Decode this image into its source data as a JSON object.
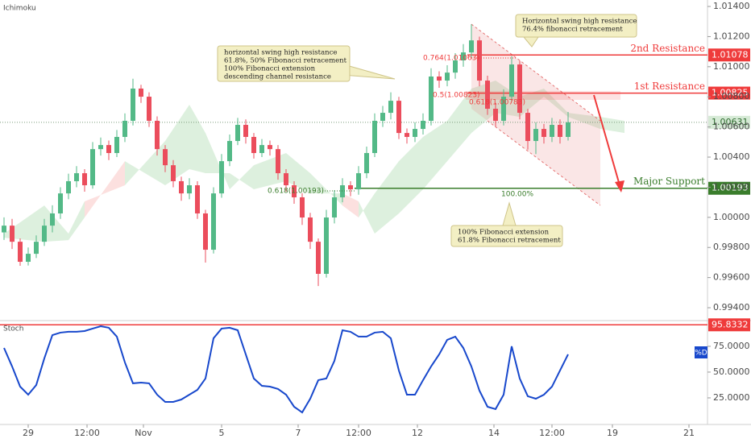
{
  "chart_data": {
    "type": "candlestick",
    "indicator": "Ichimoku",
    "up_color": "#53b987",
    "down_color": "#eb4d5c",
    "xlim": [
      -0.5,
      87.3
    ],
    "xticks": [
      {
        "value": 3,
        "label": "29"
      },
      {
        "value": 10.3,
        "label": "12:00"
      },
      {
        "value": 17.3,
        "label": "Nov"
      },
      {
        "value": 27,
        "label": "5"
      },
      {
        "value": 36.5,
        "label": "7"
      },
      {
        "value": 44,
        "label": "12:00"
      },
      {
        "value": 51.3,
        "label": "12"
      },
      {
        "value": 60.8,
        "label": "14"
      },
      {
        "value": 68,
        "label": "12:00"
      },
      {
        "value": 75.5,
        "label": "19"
      },
      {
        "value": 85,
        "label": "21"
      }
    ],
    "ylim": [
      0.9932,
      1.01443
    ],
    "yticks": [
      {
        "value": 1.014,
        "label": "1.01400"
      },
      {
        "value": 1.012,
        "label": "1.01200"
      },
      {
        "value": 1.01,
        "label": "1.01000"
      },
      {
        "value": 1.008,
        "label": "1.00800"
      },
      {
        "value": 1.006,
        "label": "1.00600"
      },
      {
        "value": 1.004,
        "label": "1.00400"
      },
      {
        "value": 1.002,
        "label": "1.00200"
      },
      {
        "value": 1.0,
        "label": "1.00000"
      },
      {
        "value": 0.998,
        "label": "0.99800"
      },
      {
        "value": 0.996,
        "label": "0.99600"
      },
      {
        "value": 0.994,
        "label": "0.99400"
      }
    ],
    "grid": false,
    "ohlc": [
      [
        0.999,
        1.0,
        0.9985,
        0.99945
      ],
      [
        0.99945,
        0.9999,
        0.9979,
        0.99838
      ],
      [
        0.99838,
        0.9986,
        0.99678,
        0.99705
      ],
      [
        0.99705,
        0.998,
        0.9968,
        0.99758
      ],
      [
        0.99758,
        0.9988,
        0.9973,
        0.99838
      ],
      [
        0.99838,
        0.9999,
        0.9981,
        0.99945
      ],
      [
        0.99945,
        1.0008,
        0.999,
        1.00026
      ],
      [
        1.00026,
        1.002,
        0.9999,
        1.00159
      ],
      [
        1.00159,
        1.0029,
        1.0012,
        1.0024
      ],
      [
        1.0024,
        1.0034,
        1.002,
        1.00293
      ],
      [
        1.00293,
        1.0032,
        1.0017,
        1.00213
      ],
      [
        1.00213,
        1.005,
        1.0019,
        1.00453
      ],
      [
        1.00453,
        1.0053,
        1.0041,
        1.0048
      ],
      [
        1.0048,
        1.0051,
        1.0038,
        1.00427
      ],
      [
        1.00427,
        1.0058,
        1.004,
        1.00534
      ],
      [
        1.00534,
        1.0069,
        1.005,
        1.00641
      ],
      [
        1.00641,
        1.0092,
        1.0061,
        1.00855
      ],
      [
        1.00855,
        1.0088,
        1.0076,
        1.00801
      ],
      [
        1.00801,
        1.0083,
        1.006,
        1.00641
      ],
      [
        1.00641,
        1.0067,
        1.0041,
        1.00453
      ],
      [
        1.00453,
        1.0048,
        1.003,
        1.00346
      ],
      [
        1.00346,
        1.0038,
        1.002,
        1.0024
      ],
      [
        1.0024,
        1.0027,
        1.0011,
        1.00159
      ],
      [
        1.00159,
        1.0026,
        1.0012,
        1.00213
      ],
      [
        1.00213,
        1.0024,
        0.9999,
        1.00026
      ],
      [
        1.00026,
        1.0005,
        0.997,
        0.99785
      ],
      [
        0.99785,
        1.002,
        0.9976,
        1.00159
      ],
      [
        1.00159,
        1.0042,
        1.0013,
        1.00373
      ],
      [
        1.00373,
        1.0055,
        1.0034,
        1.00507
      ],
      [
        1.00507,
        1.0066,
        1.0048,
        1.00614
      ],
      [
        1.00614,
        1.0065,
        1.0049,
        1.00534
      ],
      [
        1.00534,
        1.0056,
        1.0039,
        1.00427
      ],
      [
        1.00427,
        1.0052,
        1.004,
        1.0048
      ],
      [
        1.0048,
        1.0051,
        1.0041,
        1.00453
      ],
      [
        1.00453,
        1.0048,
        1.0025,
        1.00293
      ],
      [
        1.00293,
        1.0032,
        1.0017,
        1.00213
      ],
      [
        1.00213,
        1.0024,
        1.0009,
        1.00133
      ],
      [
        1.00133,
        1.0016,
        0.9995,
        0.99999
      ],
      [
        0.99999,
        1.0003,
        0.9979,
        0.99838
      ],
      [
        0.99838,
        0.9986,
        0.99544,
        0.99625
      ],
      [
        0.99625,
        1.0005,
        0.996,
        0.99999
      ],
      [
        0.99999,
        1.0018,
        0.9996,
        1.00133
      ],
      [
        1.00133,
        1.0026,
        1.001,
        1.00213
      ],
      [
        1.00213,
        1.0024,
        1.0014,
        1.00186
      ],
      [
        1.00186,
        1.0034,
        1.0015,
        1.00293
      ],
      [
        1.00293,
        1.0047,
        1.0026,
        1.00427
      ],
      [
        1.00427,
        1.0069,
        1.004,
        1.00641
      ],
      [
        1.00641,
        1.0074,
        1.006,
        1.00694
      ],
      [
        1.00694,
        1.0083,
        1.0065,
        1.00774
      ],
      [
        1.00774,
        1.008,
        1.0052,
        1.0056
      ],
      [
        1.0056,
        1.0059,
        1.0049,
        1.00534
      ],
      [
        1.00534,
        1.0063,
        1.005,
        1.00587
      ],
      [
        1.00587,
        1.0069,
        1.0055,
        1.00641
      ],
      [
        1.00641,
        1.0099,
        1.0061,
        1.00935
      ],
      [
        1.00935,
        1.0097,
        1.0086,
        1.00908
      ],
      [
        1.00908,
        1.0101,
        1.0087,
        1.00961
      ],
      [
        1.00961,
        1.0109,
        1.0092,
        1.01042
      ],
      [
        1.01042,
        1.0115,
        1.01,
        1.01095
      ],
      [
        1.01095,
        1.01282,
        1.0106,
        1.01175
      ],
      [
        1.01175,
        1.012,
        1.0087,
        1.00908
      ],
      [
        1.00908,
        1.0094,
        1.0068,
        1.00721
      ],
      [
        1.00721,
        1.0076,
        1.006,
        1.00641
      ],
      [
        1.00641,
        1.0085,
        1.0061,
        1.00801
      ],
      [
        1.00801,
        1.0107,
        1.0077,
        1.01015
      ],
      [
        1.01015,
        1.0104,
        1.0065,
        1.00694
      ],
      [
        1.00694,
        1.0072,
        1.0045,
        1.00507
      ],
      [
        1.00507,
        1.0063,
        1.0042,
        1.00587
      ],
      [
        1.00587,
        1.0062,
        1.0049,
        1.00534
      ],
      [
        1.00534,
        1.0066,
        1.005,
        1.00614
      ],
      [
        1.00614,
        1.0065,
        1.0049,
        1.00534
      ],
      [
        1.00534,
        1.007,
        1.0051,
        1.00631
      ]
    ],
    "last_price": 1.00631,
    "cloud": {
      "x": [
        0,
        5,
        8,
        10,
        15,
        20,
        23,
        25,
        28,
        31,
        35,
        38,
        42,
        44,
        46,
        49,
        52,
        55,
        58,
        61,
        64,
        67,
        70,
        74,
        77
      ],
      "span_a": [
        0.99892,
        1.00079,
        0.99892,
        1.00106,
        1.00213,
        1.00507,
        1.00748,
        1.0056,
        1.00186,
        1.00346,
        1.00427,
        1.00293,
        1.00079,
        0.99999,
        1.00159,
        1.00373,
        1.00534,
        1.00641,
        1.00855,
        1.00908,
        1.00801,
        1.00855,
        1.00694,
        1.00667,
        1.00641
      ],
      "span_b": [
        0.99865,
        0.99838,
        0.99849,
        0.99999,
        1.00373,
        1.00213,
        1.0032,
        1.00293,
        1.00293,
        1.00186,
        1.0024,
        1.00159,
        1.00159,
        1.00106,
        0.99892,
        1.00026,
        1.00186,
        1.00373,
        1.0056,
        1.00694,
        1.00667,
        1.00801,
        1.00667,
        1.00587,
        1.0056
      ]
    },
    "levels": [
      {
        "name": "2nd Resistance",
        "value": 1.01078,
        "color": "#ef3b3b"
      },
      {
        "name": "1st Resistance",
        "value": 1.00825,
        "color": "#ef3b3b"
      },
      {
        "name": "Major Support",
        "value": 1.00193,
        "color": "#3a7d2c"
      }
    ],
    "fib_labels": [
      "0.764(1.01063)",
      "0.5(1.00823)",
      "0.618(1.00783)",
      "0.618(1.00193)",
      "100.00%"
    ],
    "callouts": [
      [
        "horizontal swing high resistance",
        "61.8%, 50% Fibonacci retracement",
        "100% Fibonacci extension",
        "descending channel resistance"
      ],
      [
        "Horizontal swing high resistance",
        "76.4% fibonacci retracement"
      ],
      [
        "100% Fibonacci extension",
        "61.8% Fibonacci retracement"
      ]
    ],
    "stoch": {
      "label": "Stoch",
      "series_label": "%D",
      "color": "#1848cc",
      "level": 95.8332,
      "level_color": "#ef3b3b",
      "y2lim": [
        -0.8,
        98.4
      ],
      "y2ticks": [
        {
          "value": 75,
          "label": "75.0000"
        },
        {
          "value": 50,
          "label": "50.0000"
        },
        {
          "value": 25,
          "label": "25.0000"
        }
      ],
      "values": [
        73.4,
        55.5,
        35.9,
        28.1,
        37.5,
        63.3,
        85.9,
        88.3,
        89.1,
        89.1,
        89.8,
        92.2,
        94.5,
        93.0,
        84.4,
        59.4,
        39.1,
        39.8,
        39.1,
        28.1,
        21.1,
        21.1,
        23.4,
        28.1,
        32.8,
        43.8,
        82.8,
        92.2,
        93.0,
        90.6,
        67.2,
        43.8,
        36.7,
        35.9,
        33.6,
        28.1,
        16.4,
        10.9,
        24.2,
        42.2,
        43.8,
        60.9,
        90.6,
        89.1,
        84.4,
        84.4,
        88.3,
        89.1,
        82.8,
        51.6,
        28.1,
        28.1,
        42.2,
        55.5,
        67.2,
        81.3,
        84.4,
        73.4,
        55.5,
        32.0,
        16.4,
        14.1,
        28.1,
        75.0,
        43.8,
        26.6,
        24.2,
        28.1,
        35.9,
        51.6,
        67.2
      ]
    }
  }
}
